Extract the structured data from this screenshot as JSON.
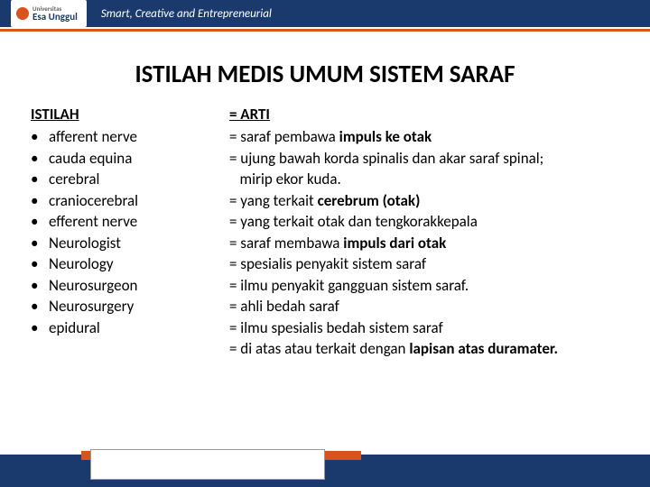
{
  "header": {
    "university_top": "Universitas",
    "university_name": "Esa Unggul",
    "tagline": "Smart, Creative and Entrepreneurial"
  },
  "title": "ISTILAH  MEDIS UMUM SISTEM SARAF",
  "left_header": "ISTILAH",
  "right_header": "= ARTI",
  "rows": [
    {
      "term": "afferent nerve",
      "def": "= saraf pembawa <b>impuls ke otak</b>"
    },
    {
      "term": "cauda equina",
      "def": "= ujung bawah korda spinalis dan akar saraf spinal;<br>&nbsp;&nbsp;&nbsp;mirip ekor kuda."
    },
    {
      "term": "cerebral",
      "def": "= yang terkait <b>cerebrum (otak)</b>"
    },
    {
      "term": "craniocerebral",
      "def": "= yang terkait otak dan tengkorakkepala"
    },
    {
      "term": "efferent nerve",
      "def": "= saraf membawa <b>impuls dari otak</b>"
    },
    {
      "term": "Neurologist",
      "def": "= spesialis penyakit sistem saraf"
    },
    {
      "term": "Neurology",
      "def": "= ilmu penyakit gangguan sistem saraf."
    },
    {
      "term": "Neurosurgeon",
      "def": "= ahli bedah saraf"
    },
    {
      "term": "Neurosurgery",
      "def": "= ilmu spesialis bedah sistem saraf"
    },
    {
      "term": "epidural",
      "def": "= di atas atau terkait dengan <b>lapisan atas duramater.</b>"
    }
  ]
}
